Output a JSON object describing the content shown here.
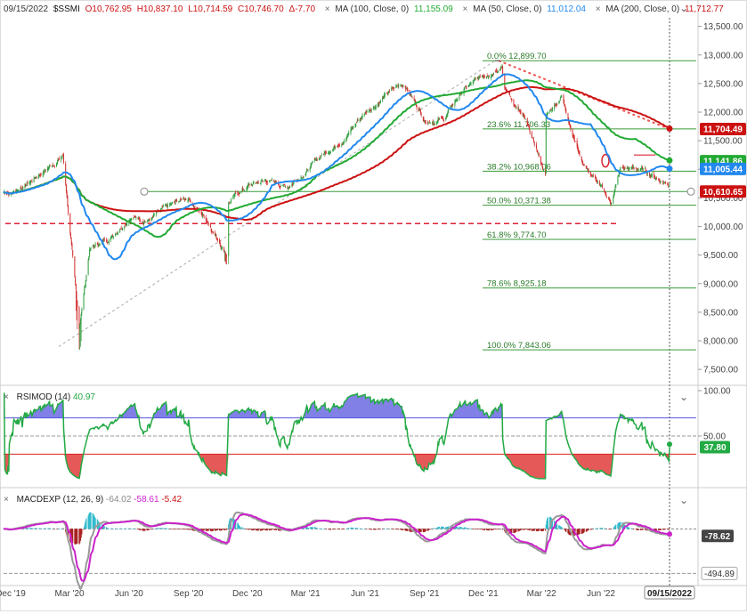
{
  "header": {
    "date": "09/15/2022",
    "symbol": "$SSMI",
    "open": "O10,762.95",
    "high": "H10,837.10",
    "low": "L10,714.59",
    "close": "C10,746.70",
    "change": "Δ-7.70",
    "ma100_label": "MA (100, Close, 0)",
    "ma100_value": "11,155.09",
    "ma50_label": "MA (50, Close, 0)",
    "ma50_value": "11,012.04",
    "ma200_label": "MA (200, Close, 0)",
    "ma200_value": "11,712.77",
    "close_glyph": "×",
    "collapse_glyph": "⌄"
  },
  "colors": {
    "up": "#2e9e3e",
    "down": "#d32f2f",
    "ma100": "#22aa33",
    "ma50": "#2288ee",
    "ma200": "#cc1111",
    "fib": "#3a9a3a",
    "rsi": "#22aa44",
    "rsi_high": "#5555dd",
    "rsi_low": "#dd2222",
    "macd": "#cc22cc",
    "signal": "#999999"
  },
  "chart_data": [
    {
      "type": "line",
      "title": "$SSMI",
      "x_tick_labels": [
        "Dec '19",
        "Mar '20",
        "Jun '20",
        "Sep '20",
        "Dec '20",
        "Mar '21",
        "Jun '21",
        "Sep '21",
        "Dec '21",
        "Mar '22",
        "Jun '22",
        "09/15/2022"
      ],
      "y_tick_labels": [
        "13,500.00",
        "13,000.00",
        "12,500.00",
        "12,000.00",
        "11,500.00",
        "11,000.00",
        "10,500.00",
        "10,000.00",
        "9,500.00",
        "9,000.00",
        "8,500.00",
        "8,000.00",
        "7,500.00"
      ],
      "ylim": [
        7300,
        13650
      ],
      "price_anchors": {
        "dates": [
          "2019-12",
          "2020-01",
          "2020-02-20",
          "2020-03-16",
          "2020-04",
          "2020-05",
          "2020-06",
          "2020-07",
          "2020-08",
          "2020-09",
          "2020-10",
          "2020-10-30",
          "2020-11",
          "2020-12",
          "2021-01",
          "2021-02",
          "2021-03",
          "2021-04",
          "2021-05",
          "2021-06",
          "2021-07",
          "2021-08",
          "2021-09",
          "2021-10",
          "2021-11",
          "2021-12",
          "2021-12-30",
          "2022-01",
          "2022-02",
          "2022-03-07",
          "2022-03",
          "2022-04",
          "2022-05",
          "2022-06-16",
          "2022-07",
          "2022-08",
          "2022-09-15"
        ],
        "close": [
          10600,
          10800,
          11250,
          8200,
          9600,
          9800,
          10200,
          10150,
          10300,
          10500,
          10100,
          9550,
          10450,
          10700,
          10800,
          10700,
          11000,
          11300,
          11600,
          12000,
          12300,
          12500,
          11900,
          11900,
          12400,
          12600,
          12900,
          12500,
          11900,
          10900,
          11800,
          12300,
          11200,
          10400,
          11000,
          11000,
          10746.7
        ]
      },
      "ma_values": {
        "ma100": 11155.09,
        "ma50": 11012.04,
        "ma200": 11712.77
      },
      "series": [
        {
          "name": "MA (100, Close, 0)",
          "last": 11155.09
        },
        {
          "name": "MA (50, Close, 0)",
          "last": 11012.04
        },
        {
          "name": "MA (200, Close, 0)",
          "last": 11712.77
        }
      ],
      "fibonacci": [
        {
          "label": "0.0% 12,899.70",
          "value": 12899.7
        },
        {
          "label": "23.6% 11,706.33",
          "value": 11706.33
        },
        {
          "label": "38.2% 10,968.06",
          "value": 10968.06
        },
        {
          "label": "50.0% 10,371.38",
          "value": 10371.38
        },
        {
          "label": "61.8% 9,774.70",
          "value": 9774.7
        },
        {
          "label": "78.6% 8,925.18",
          "value": 8925.18
        },
        {
          "label": "100.0% 7,843.06",
          "value": 7843.06
        }
      ],
      "price_badges": [
        {
          "label": "11,704.49",
          "value": 11704.49,
          "color": "#cc1111"
        },
        {
          "label": "11,141.86",
          "value": 11141.86,
          "color": "#22aa33"
        },
        {
          "label": "11,005.44",
          "value": 11005.44,
          "color": "#2288ee"
        },
        {
          "label": "10,610.65",
          "value": 10610.65,
          "color": "#cc1111"
        }
      ],
      "support_level": 10610.65,
      "dashed_support": 10050
    },
    {
      "type": "line",
      "title": "RSIMOD (14)",
      "value": 40.97,
      "value_text": "40.97",
      "levels": [
        30,
        50,
        70
      ],
      "y_tick_labels": [
        "100.00",
        "50.00"
      ],
      "ylim": [
        0,
        100
      ],
      "badge": "37.80"
    },
    {
      "type": "bar",
      "title": "MACDEXP (12, 26, 9)",
      "values_text": [
        "-64.02",
        "-58.61",
        "-5.42"
      ],
      "macd": -64.02,
      "signal": -58.61,
      "histogram": -5.42,
      "badges": [
        "-78.62",
        "-494.89"
      ]
    }
  ]
}
